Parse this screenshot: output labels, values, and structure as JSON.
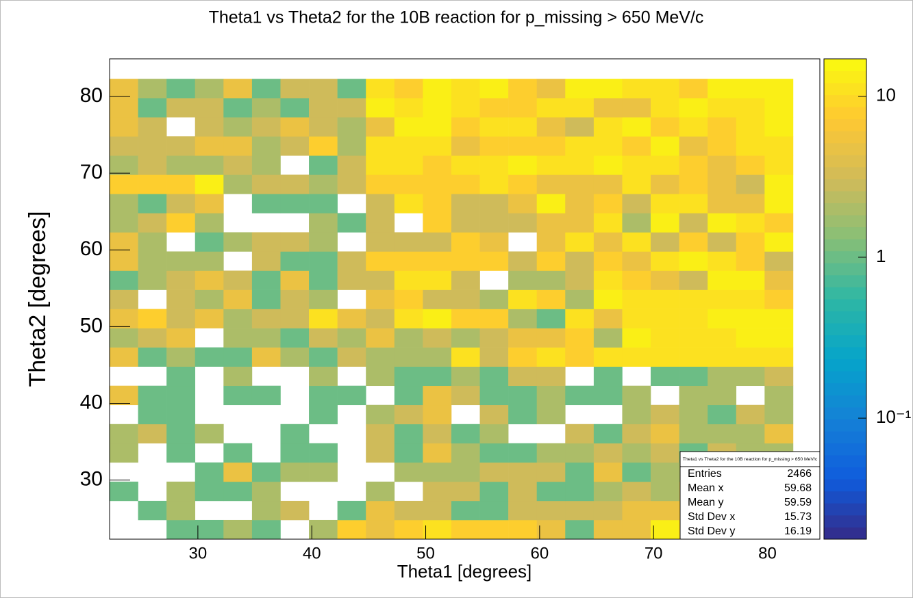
{
  "chart_data": {
    "type": "heatmap",
    "title": "Theta1 vs Theta2 for the 10B reaction for p_missing > 650 MeV/c",
    "x_label": "Theta1 [degrees]",
    "y_label": "Theta2 [degrees]",
    "xlim": [
      22.25,
      84.6
    ],
    "ylim": [
      22.3,
      84.9
    ],
    "xticks": [
      30,
      40,
      50,
      60,
      70,
      80
    ],
    "yticks": [
      30,
      40,
      50,
      60,
      70,
      80
    ],
    "x_bins": [
      22.25,
      24.75,
      27.25,
      29.75,
      32.25,
      34.75,
      37.25,
      39.75,
      42.25,
      44.75,
      47.25,
      49.75,
      52.25,
      54.75,
      57.25,
      59.75,
      62.25,
      64.75,
      67.25,
      69.75,
      72.25,
      74.75,
      77.25,
      79.75,
      82.25
    ],
    "y_bins": [
      22.3,
      24.8,
      27.3,
      29.8,
      32.3,
      34.8,
      37.3,
      39.8,
      42.3,
      44.8,
      47.3,
      49.8,
      52.3,
      54.8,
      57.3,
      59.8,
      62.3,
      64.8,
      67.3,
      69.8,
      72.3,
      74.8,
      77.3,
      79.8,
      82.3
    ],
    "z": [
      [
        0,
        0,
        1,
        1,
        2,
        1,
        0,
        2,
        8,
        5,
        8,
        11,
        8,
        8,
        8,
        5,
        1,
        5,
        5,
        14,
        8,
        8,
        11,
        11
      ],
      [
        0,
        1,
        2,
        0,
        0,
        2,
        3,
        0,
        1,
        5,
        3,
        3,
        1,
        1,
        3,
        3,
        3,
        3,
        5,
        5,
        5,
        3,
        5,
        3
      ],
      [
        1,
        0,
        2,
        1,
        1,
        2,
        0,
        0,
        0,
        2,
        0,
        3,
        3,
        1,
        3,
        1,
        1,
        2,
        3,
        2,
        3,
        2,
        2,
        3
      ],
      [
        0,
        0,
        0,
        1,
        5,
        1,
        2,
        2,
        0,
        0,
        2,
        2,
        2,
        3,
        3,
        3,
        1,
        5,
        1,
        2,
        2,
        2,
        3,
        2
      ],
      [
        2,
        0,
        1,
        0,
        1,
        0,
        1,
        1,
        0,
        3,
        1,
        5,
        2,
        1,
        1,
        2,
        2,
        3,
        2,
        3,
        1,
        3,
        2,
        2
      ],
      [
        2,
        3,
        1,
        2,
        0,
        0,
        1,
        0,
        0,
        3,
        1,
        3,
        1,
        2,
        0,
        0,
        3,
        1,
        3,
        5,
        2,
        2,
        2,
        5
      ],
      [
        0,
        1,
        1,
        0,
        0,
        0,
        0,
        1,
        0,
        2,
        3,
        5,
        0,
        3,
        1,
        2,
        0,
        0,
        2,
        3,
        2,
        1,
        3,
        2
      ],
      [
        5,
        1,
        1,
        0,
        1,
        1,
        0,
        1,
        1,
        0,
        1,
        5,
        3,
        1,
        1,
        2,
        1,
        1,
        2,
        0,
        2,
        2,
        0,
        2
      ],
      [
        0,
        0,
        1,
        0,
        2,
        0,
        0,
        2,
        0,
        2,
        1,
        1,
        2,
        1,
        3,
        3,
        0,
        1,
        0,
        1,
        1,
        2,
        2,
        3
      ],
      [
        5,
        1,
        2,
        1,
        1,
        5,
        2,
        1,
        3,
        2,
        2,
        2,
        11,
        3,
        8,
        11,
        8,
        11,
        11,
        11,
        11,
        11,
        11,
        11
      ],
      [
        2,
        3,
        5,
        0,
        2,
        2,
        1,
        3,
        2,
        5,
        2,
        3,
        2,
        3,
        5,
        5,
        8,
        2,
        14,
        11,
        11,
        11,
        14,
        14
      ],
      [
        5,
        8,
        3,
        5,
        2,
        3,
        3,
        11,
        5,
        3,
        11,
        14,
        8,
        8,
        2,
        1,
        11,
        5,
        11,
        11,
        11,
        14,
        14,
        14
      ],
      [
        3,
        0,
        3,
        2,
        5,
        1,
        3,
        2,
        0,
        5,
        8,
        3,
        3,
        2,
        11,
        8,
        2,
        14,
        11,
        11,
        11,
        11,
        11,
        8
      ],
      [
        1,
        2,
        3,
        5,
        3,
        1,
        5,
        1,
        3,
        3,
        11,
        11,
        3,
        0,
        2,
        2,
        3,
        11,
        8,
        5,
        3,
        14,
        14,
        5
      ],
      [
        5,
        2,
        2,
        2,
        0,
        3,
        1,
        1,
        3,
        8,
        8,
        8,
        8,
        8,
        3,
        8,
        3,
        8,
        5,
        11,
        14,
        11,
        8,
        3
      ],
      [
        5,
        2,
        0,
        1,
        2,
        3,
        3,
        2,
        0,
        3,
        3,
        3,
        8,
        5,
        0,
        5,
        11,
        5,
        11,
        3,
        8,
        3,
        8,
        14
      ],
      [
        2,
        3,
        8,
        2,
        0,
        0,
        0,
        2,
        1,
        3,
        0,
        8,
        3,
        3,
        3,
        5,
        5,
        11,
        2,
        14,
        3,
        14,
        11,
        8
      ],
      [
        2,
        1,
        3,
        5,
        0,
        1,
        1,
        1,
        0,
        3,
        11,
        8,
        3,
        3,
        5,
        14,
        5,
        8,
        3,
        11,
        11,
        5,
        5,
        14
      ],
      [
        8,
        8,
        8,
        14,
        2,
        3,
        3,
        2,
        3,
        8,
        8,
        8,
        8,
        11,
        8,
        5,
        5,
        5,
        11,
        5,
        8,
        5,
        3,
        14
      ],
      [
        2,
        3,
        2,
        2,
        3,
        2,
        0,
        1,
        3,
        11,
        11,
        8,
        11,
        11,
        14,
        11,
        11,
        14,
        11,
        11,
        8,
        5,
        8,
        11
      ],
      [
        3,
        3,
        3,
        5,
        5,
        2,
        3,
        8,
        2,
        11,
        11,
        11,
        5,
        8,
        8,
        8,
        11,
        11,
        8,
        14,
        5,
        8,
        11,
        11
      ],
      [
        5,
        3,
        0,
        3,
        2,
        3,
        5,
        3,
        2,
        5,
        14,
        14,
        8,
        11,
        11,
        5,
        3,
        11,
        14,
        8,
        11,
        8,
        11,
        14
      ],
      [
        5,
        1,
        3,
        3,
        1,
        2,
        1,
        3,
        3,
        14,
        11,
        14,
        11,
        8,
        8,
        11,
        11,
        5,
        5,
        11,
        14,
        11,
        11,
        14
      ],
      [
        5,
        2,
        1,
        2,
        5,
        1,
        3,
        3,
        1,
        11,
        8,
        14,
        11,
        14,
        8,
        5,
        14,
        14,
        11,
        11,
        8,
        14,
        14,
        14
      ]
    ],
    "zlim": [
      0.0177,
      17.1
    ],
    "zscale": "log",
    "zticks": [
      {
        "value": 0.1,
        "label": "10⁻¹"
      },
      1,
      10
    ],
    "colormap": [
      "#352a87",
      "#0f5cdd",
      "#1481d6",
      "#06a4ca",
      "#2eb7a4",
      "#87bf77",
      "#d1bb59",
      "#fec832",
      "#f9fb0e"
    ],
    "stats": {
      "title": "Theta1 vs Theta2 for the 10B reaction for p_missing > 650 MeV/c",
      "rows": [
        {
          "label": "Entries",
          "value": 2466
        },
        {
          "label": "Mean x",
          "value": 59.68
        },
        {
          "label": "Mean y",
          "value": 59.59
        },
        {
          "label": "Std Dev x",
          "value": 15.73
        },
        {
          "label": "Std Dev y",
          "value": 16.19
        }
      ]
    }
  }
}
